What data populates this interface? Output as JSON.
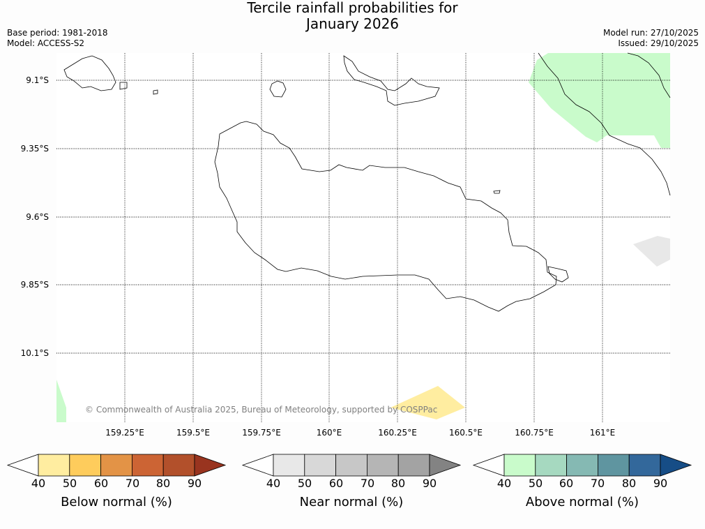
{
  "title": {
    "line1": "Tercile rainfall probabilities for",
    "line2": "January 2026"
  },
  "meta_left": {
    "base_period": "Base period: 1981-2018",
    "model": "Model: ACCESS-S2"
  },
  "meta_right": {
    "model_run": "Model run: 27/10/2025",
    "issued": "Issued: 29/10/2025"
  },
  "map": {
    "lat_labels": [
      "9.1°S",
      "9.35°S",
      "9.6°S",
      "9.85°S",
      "10.1°S"
    ],
    "lon_labels": [
      "159.25°E",
      "159.5°E",
      "159.75°E",
      "160°E",
      "160.25°E",
      "160.5°E",
      "160.75°E",
      "161°E"
    ],
    "copyright": "© Commonwealth of Australia 2025, Bureau of Meteorology, supported by COSPPac"
  },
  "colorbars": [
    {
      "title": "Below normal (%)",
      "ticks": [
        "40",
        "50",
        "60",
        "70",
        "80",
        "90"
      ],
      "colors": [
        "#ffffff",
        "#ffeda0",
        "#fecc5c",
        "#e39346",
        "#cc6434",
        "#b2502b",
        "#99341f"
      ]
    },
    {
      "title": "Near normal (%)",
      "ticks": [
        "40",
        "50",
        "60",
        "70",
        "80",
        "90"
      ],
      "colors": [
        "#ffffff",
        "#e8e8e8",
        "#d8d8d8",
        "#c7c7c7",
        "#b5b5b5",
        "#a3a3a3",
        "#838383"
      ]
    },
    {
      "title": "Above normal (%)",
      "ticks": [
        "40",
        "50",
        "60",
        "70",
        "80",
        "90"
      ],
      "colors": [
        "#ffffff",
        "#c9fbcb",
        "#a6d9c0",
        "#85b9b3",
        "#5f95a0",
        "#33689b",
        "#164d86"
      ]
    }
  ]
}
